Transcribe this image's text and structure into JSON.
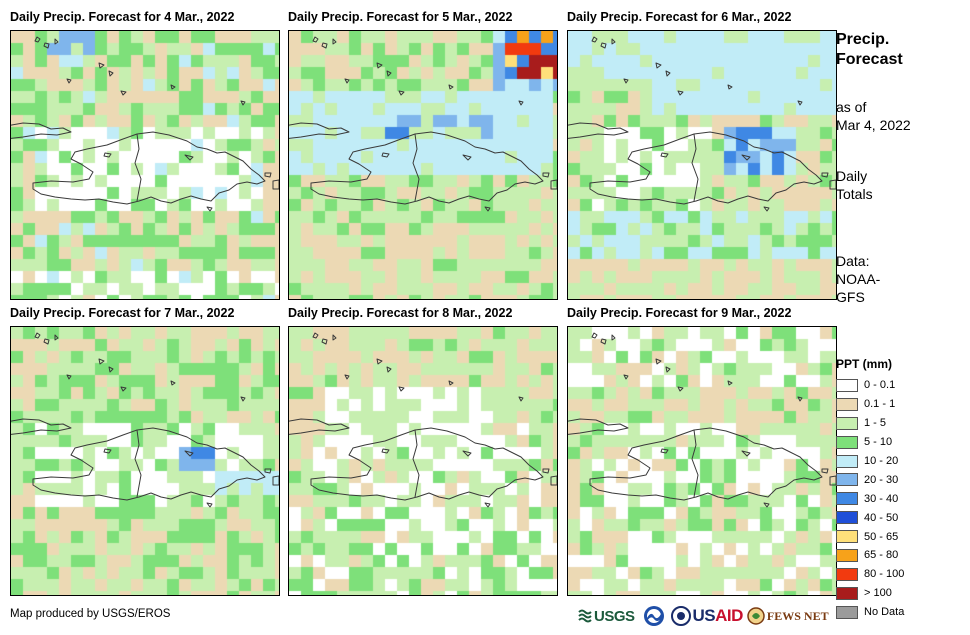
{
  "panels": [
    {
      "title": "Daily Precip. Forecast for 4 Mar., 2022",
      "pattern": "day1"
    },
    {
      "title": "Daily Precip. Forecast for 5 Mar., 2022",
      "pattern": "day2"
    },
    {
      "title": "Daily Precip. Forecast for 6 Mar., 2022",
      "pattern": "day3"
    },
    {
      "title": "Daily Precip. Forecast for 7 Mar., 2022",
      "pattern": "day4"
    },
    {
      "title": "Daily Precip. Forecast for 8 Mar., 2022",
      "pattern": "day5"
    },
    {
      "title": "Daily Precip. Forecast for 9 Mar., 2022",
      "pattern": "day6"
    }
  ],
  "sidebar": {
    "title_line1": "Precip.",
    "title_line2": "Forecast",
    "asof_line1": "as of",
    "asof_line2": "Mar 4, 2022",
    "totals_line1": "Daily",
    "totals_line2": "Totals",
    "source_line1": "Data:",
    "source_line2": "NOAA-",
    "source_line3": "GFS"
  },
  "legend": {
    "title": "PPT (mm)",
    "items": [
      {
        "label": "0 - 0.1",
        "color": "#ffffff"
      },
      {
        "label": "0.1 - 1",
        "color": "#ecd9b4"
      },
      {
        "label": "1 - 5",
        "color": "#c7efb0"
      },
      {
        "label": "5 - 10",
        "color": "#7ee07a"
      },
      {
        "label": "10 - 20",
        "color": "#c1ecf7"
      },
      {
        "label": "20 - 30",
        "color": "#7fb5ec"
      },
      {
        "label": "30 - 40",
        "color": "#3f88e4"
      },
      {
        "label": "40 - 50",
        "color": "#1f4fd8"
      },
      {
        "label": "50 - 65",
        "color": "#ffe07a"
      },
      {
        "label": "65 - 80",
        "color": "#f7a21a"
      },
      {
        "label": "80 - 100",
        "color": "#f23a0f"
      },
      {
        "label": "> 100",
        "color": "#a81c1c"
      },
      {
        "label": "No Data",
        "color": "#9b9b9b"
      }
    ]
  },
  "credit": "Map produced by USGS/EROS",
  "logos": {
    "usgs": "USGS",
    "usaid_a": "US",
    "usaid_b": "AID",
    "fews": "FEWS NET"
  }
}
